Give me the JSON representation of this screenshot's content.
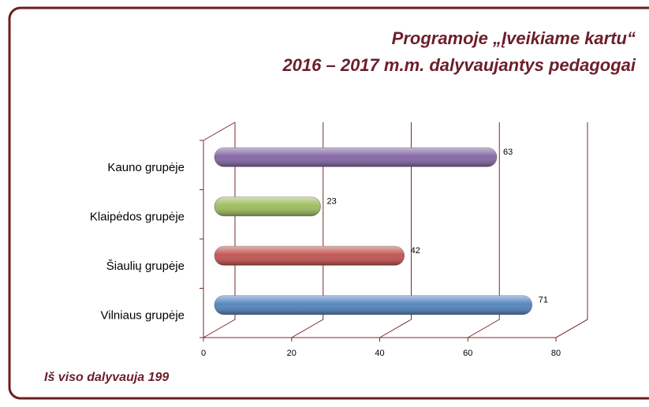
{
  "chart_data": {
    "type": "bar",
    "orientation": "horizontal",
    "title": "Programoje „Įveikiame kartu“",
    "subtitle": "2016 – 2017 m.m. dalyvaujantys pedagogai",
    "categories": [
      "Kauno grupėje",
      "Klaipėdos grupėje",
      "Šiaulių grupėje",
      "Vilniaus grupėje"
    ],
    "values": [
      63,
      23,
      42,
      71
    ],
    "colors": [
      "#8064a2",
      "#9bbb59",
      "#c0504d",
      "#4f81bd"
    ],
    "xlim": [
      0,
      80
    ],
    "xticks": [
      0,
      20,
      40,
      60,
      80
    ],
    "grid": true,
    "annotation": "Iš viso dalyvauja 199"
  }
}
